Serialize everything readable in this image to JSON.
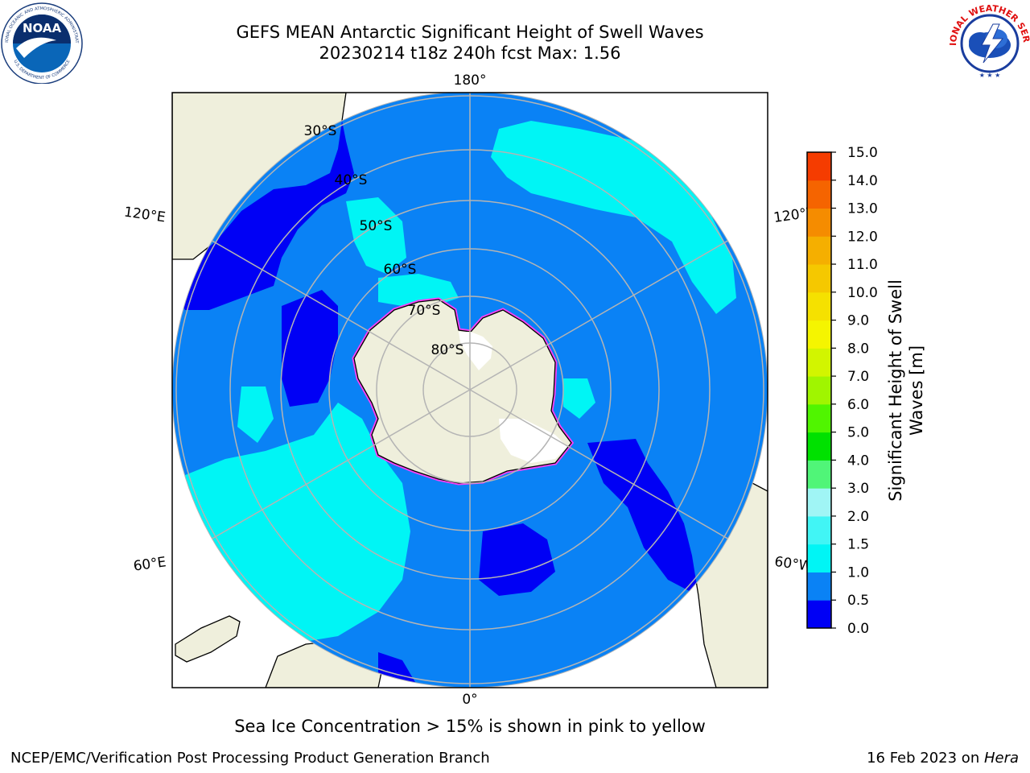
{
  "title": {
    "line1": "GEFS MEAN Antarctic Significant Height of Swell Waves",
    "line2": "20230214 t18z 240h fcst   Max: 1.56"
  },
  "map": {
    "projection": "south-polar-stereographic",
    "colors": {
      "ocean_base": "#0a82f5",
      "land": "#efefdc",
      "deep_blue": "#0000f5",
      "cyan": "#00f5f5",
      "light_cyan": "#41f5f5",
      "sea_ice_pink": "#f541f5",
      "sea_ice_white": "#ffffff",
      "grid": "#b4b4b4",
      "coast": "#000000"
    },
    "longitude_labels": {
      "top": "180°",
      "bottom": "0°",
      "upper_left": "120°E",
      "upper_right": "120°W",
      "lower_left": "60°E",
      "lower_right": "60°W"
    },
    "latitude_labels": [
      "30°S",
      "40°S",
      "50°S",
      "60°S",
      "70°S",
      "80°S"
    ]
  },
  "colorbar": {
    "title_line1": "Significant Height of Swell",
    "title_line2": "Waves [m]",
    "ticks": [
      "0.0",
      "0.5",
      "1.0",
      "1.5",
      "2.0",
      "3.0",
      "4.0",
      "5.0",
      "6.0",
      "7.0",
      "8.0",
      "9.0",
      "10.0",
      "11.0",
      "12.0",
      "13.0",
      "14.0",
      "15.0"
    ],
    "colors": [
      "#0000f5",
      "#0a82f5",
      "#00f5f5",
      "#41f5f5",
      "#a0f5f5",
      "#50f578",
      "#00e100",
      "#50f500",
      "#a0f500",
      "#d2f500",
      "#f5f500",
      "#f5e100",
      "#f5c800",
      "#f5af00",
      "#f58c00",
      "#f56400",
      "#f53c00",
      "#f50000"
    ]
  },
  "logos": {
    "noaa": {
      "text": "NOAA",
      "ring_top": "NATIONAL OCEANIC AND ATMOSPHERIC ADMINISTRATION",
      "ring_bottom": "U.S. DEPARTMENT OF COMMERCE"
    },
    "nws": {
      "ring_top": "NATIONAL WEATHER SERVICE"
    }
  },
  "ice_note": "Sea Ice Concentration > 15% is shown in pink to yellow",
  "footer": {
    "left": "NCEP/EMC/Verification Post Processing Product Generation Branch",
    "right_date": "16 Feb 2023 on ",
    "right_host": "Hera"
  }
}
